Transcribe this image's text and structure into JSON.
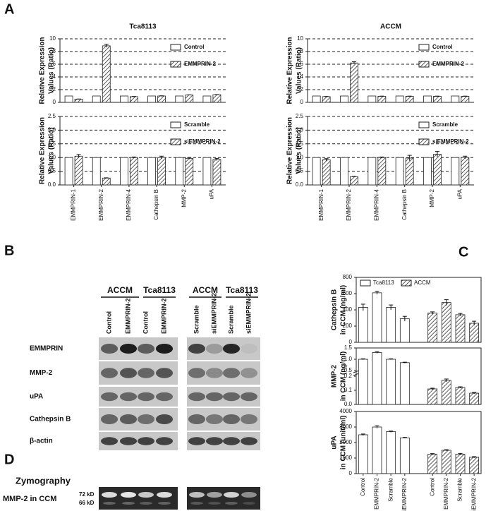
{
  "panel_labels": [
    "A",
    "B",
    "C",
    "D"
  ],
  "chart_data": [
    {
      "type": "bar",
      "title": "Tca8113",
      "ylabel": [
        "Relative Expression",
        "Values (Ratio)"
      ],
      "ylim": [
        0,
        10
      ],
      "yticks": [
        0,
        2,
        4,
        6,
        8,
        10
      ],
      "grid": true,
      "legend": "upper right",
      "series": [
        {
          "name": "Control",
          "color": "#ffffff",
          "values": [
            1,
            1,
            1,
            1,
            1,
            1
          ]
        },
        {
          "name": "EMMPRIN-2",
          "color": "#333333",
          "hatch": true,
          "values": [
            0.5,
            8.9,
            0.9,
            1.0,
            1.15,
            1.2
          ],
          "errors": [
            0.03,
            0.25,
            0.03,
            0.03,
            0.03,
            0.03
          ]
        }
      ]
    },
    {
      "type": "bar",
      "ylabel": [
        "Relative Expression",
        "Values (Ratio)"
      ],
      "categories": [
        "EMMPRIN-1",
        "EMMPRIN-2",
        "EMMPRIN-4",
        "Cathepsin B",
        "MMP-2",
        "uPA"
      ],
      "ylim": [
        0,
        2.5
      ],
      "yticks": [
        {
          "value": 0,
          "label": "0.0"
        },
        {
          "value": 0.5,
          "label": "0.5"
        },
        {
          "value": 1,
          "label": "1.0"
        },
        {
          "value": 1.5,
          "label": "1.5"
        },
        {
          "value": 2,
          "label": "2.0"
        },
        {
          "value": 2.5,
          "label": "2.5"
        }
      ],
      "grid": true,
      "legend": "upper right",
      "series": [
        {
          "name": "Scramble",
          "color": "#ffffff",
          "values": [
            1,
            1,
            1,
            1,
            1,
            1
          ]
        },
        {
          "name": "siEMMPRIN-2",
          "color": "#333333",
          "hatch": true,
          "values": [
            1.05,
            0.25,
            1.0,
            1.0,
            0.97,
            0.93
          ],
          "errors": [
            0.06,
            0.01,
            0.02,
            0.05,
            0.03,
            0.04
          ]
        }
      ]
    },
    {
      "type": "bar",
      "title": "ACCM",
      "ylabel": [
        "Relative Expression",
        "Values (Ratio)"
      ],
      "ylim": [
        0,
        10
      ],
      "yticks": [
        0,
        2,
        4,
        6,
        8,
        10
      ],
      "grid": true,
      "legend": "upper right",
      "series": [
        {
          "name": "Control",
          "color": "#ffffff",
          "values": [
            1,
            1,
            1,
            1,
            1,
            1
          ]
        },
        {
          "name": "EMMPRIN-2",
          "color": "#333333",
          "hatch": true,
          "values": [
            0.9,
            6.2,
            0.95,
            0.95,
            0.95,
            0.95
          ],
          "errors": [
            0.03,
            0.2,
            0.03,
            0.03,
            0.03,
            0.03
          ]
        }
      ]
    },
    {
      "type": "bar",
      "ylabel": [
        "Relative Expression",
        "Values (Ratio)"
      ],
      "categories": [
        "EMMPRIN-1",
        "EMMPRIN-2",
        "EMMPRIN-4",
        "Cathepsin B",
        "MMP-2",
        "uPA"
      ],
      "ylim": [
        0,
        2.5
      ],
      "yticks": [
        {
          "value": 0,
          "label": "0.0"
        },
        {
          "value": 0.5,
          "label": "0.5"
        },
        {
          "value": 1,
          "label": "1.0"
        },
        {
          "value": 1.5,
          "label": "1.5"
        },
        {
          "value": 2,
          "label": "2.0"
        },
        {
          "value": 2.5,
          "label": "2.5"
        }
      ],
      "grid": true,
      "legend": "upper right",
      "series": [
        {
          "name": "Scramble",
          "color": "#ffffff",
          "values": [
            1,
            1,
            1,
            1,
            1,
            1
          ]
        },
        {
          "name": "siEMMPRIN-2",
          "color": "#333333",
          "hatch": true,
          "values": [
            0.92,
            0.3,
            1.0,
            0.98,
            1.12,
            1.0
          ],
          "errors": [
            0.04,
            0.01,
            0.02,
            0.1,
            0.1,
            0.05
          ]
        }
      ]
    },
    {
      "type": "bar",
      "ylabel": [
        "Cathepsin B",
        "in CCM (ng/ml)"
      ],
      "ylim": [
        0,
        800
      ],
      "yticks": [
        0,
        200,
        400,
        600,
        800
      ],
      "grid": false,
      "legend": "upper left",
      "series": [
        {
          "name": "Tca8113",
          "color": "#ffffff",
          "values": [
            430,
            610,
            430,
            290,
            null,
            null,
            null,
            null
          ],
          "errors": [
            40,
            20,
            30,
            30,
            null,
            null,
            null,
            null
          ]
        },
        {
          "name": "ACCM",
          "color": "#333333",
          "hatch": true,
          "values": [
            null,
            null,
            null,
            null,
            360,
            490,
            340,
            235
          ],
          "errors": [
            null,
            null,
            null,
            null,
            15,
            35,
            15,
            25
          ]
        }
      ]
    },
    {
      "type": "bar",
      "ylabel": [
        "MMP-2",
        "in CCM (ng/ml)"
      ],
      "ylim": [
        0,
        0.2
      ],
      "yticks": [
        {
          "value": 0,
          "label": "0.0"
        },
        {
          "value": 0.1,
          "label": "0.1"
        },
        {
          "value": 0.2,
          "label": "0.2"
        }
      ],
      "ylim_break": [
        0.5,
        1.5
      ],
      "yticks_break": [
        {
          "value": 0.5,
          "label": "0.5"
        },
        {
          "value": 1,
          "label": "1.0"
        },
        {
          "value": 1.5,
          "label": "1.5"
        }
      ],
      "grid": false,
      "series": [
        {
          "name": "Tca8113",
          "color": "#ffffff",
          "values": [
            1.0,
            1.3,
            1.0,
            0.85,
            null,
            null,
            null,
            null
          ],
          "errors": [
            0.02,
            0.04,
            0.02,
            0.02,
            null,
            null,
            null,
            null
          ]
        },
        {
          "name": "ACCM",
          "color": "#333333",
          "hatch": true,
          "values": [
            null,
            null,
            null,
            null,
            0.11,
            0.17,
            0.12,
            0.08
          ],
          "errors": [
            null,
            null,
            null,
            null,
            0.005,
            0.01,
            0.005,
            0.005
          ]
        }
      ]
    },
    {
      "type": "bar",
      "ylabel": [
        "uPA",
        "in CCM (unit/ml)"
      ],
      "categories": [
        "Control",
        "EMMPRIN-2",
        "Scramble",
        "siEMMPRIN-2",
        "Control",
        "EMMPRIN-2",
        "Scramble",
        "siEMMPRIN-2"
      ],
      "ylim": [
        0,
        4000
      ],
      "yticks": [
        0,
        1000,
        2000,
        3000,
        4000
      ],
      "grid": false,
      "series": [
        {
          "name": "Tca8113",
          "color": "#ffffff",
          "values": [
            2500,
            3000,
            2700,
            2300,
            null,
            null,
            null,
            null
          ],
          "errors": [
            50,
            80,
            40,
            30,
            null,
            null,
            null,
            null
          ]
        },
        {
          "name": "ACCM",
          "color": "#333333",
          "hatch": true,
          "values": [
            null,
            null,
            null,
            null,
            1250,
            1500,
            1250,
            1050
          ],
          "errors": [
            null,
            null,
            null,
            null,
            40,
            40,
            50,
            40
          ]
        }
      ]
    }
  ],
  "blot": {
    "groups": [
      "ACCM",
      "Tca8113",
      "ACCM",
      "Tca8113"
    ],
    "lanes": [
      "Control",
      "EMMPRIN-2",
      "Control",
      "EMMPRIN-2",
      "Scramble",
      "siEMMPRIN-2",
      "Scramble",
      "siEMMPRIN-2"
    ],
    "rows": [
      "EMMPRIN",
      "MMP-2",
      "uPA",
      "Cathepsin B",
      "β-actin"
    ]
  },
  "zymography": {
    "title": "Zymography",
    "label": "MMP-2 in CCM",
    "markers": [
      "72 kD",
      "66 kD"
    ]
  }
}
